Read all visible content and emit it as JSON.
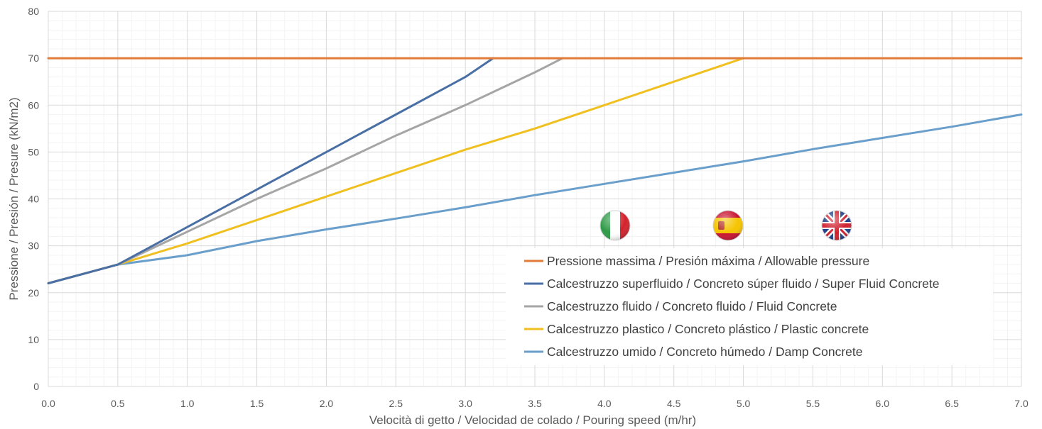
{
  "chart_data": {
    "type": "line",
    "xlabel": "Velocità di getto / Velocidad de colado / Pouring speed (m/hr)",
    "ylabel": "Pressione / Presión / Presure (kN/m2)",
    "xlim": [
      0,
      7
    ],
    "ylim": [
      0,
      80
    ],
    "x_ticks": [
      "0.0",
      "0.5",
      "1.0",
      "1.5",
      "2.0",
      "2.5",
      "3.0",
      "3.5",
      "4.0",
      "4.5",
      "5.0",
      "5.5",
      "6.0",
      "6.5",
      "7.0"
    ],
    "y_ticks": [
      "0",
      "10",
      "20",
      "30",
      "40",
      "50",
      "60",
      "70",
      "80"
    ],
    "grid": true,
    "legend_position": "bottom-right",
    "flags": [
      "italy-flag-icon",
      "spain-flag-icon",
      "uk-flag-icon"
    ],
    "series": [
      {
        "name": "Pressione massima / Presión máxima / Allowable pressure",
        "color": "#E07B39",
        "points": [
          [
            0,
            70
          ],
          [
            7,
            70
          ]
        ]
      },
      {
        "name": "Calcestruzzo superfluido / Concreto súper fluido / Super Fluid Concrete",
        "color": "#4A6FA5",
        "points": [
          [
            0,
            22
          ],
          [
            0.5,
            26
          ],
          [
            1.0,
            34
          ],
          [
            1.5,
            42
          ],
          [
            2.0,
            50
          ],
          [
            2.5,
            58
          ],
          [
            3.0,
            66
          ],
          [
            3.2,
            70
          ]
        ]
      },
      {
        "name": "Calcestruzzo fluido / Concreto fluido / Fluid Concrete",
        "color": "#A5A5A5",
        "points": [
          [
            0,
            22
          ],
          [
            0.5,
            26
          ],
          [
            1.0,
            33
          ],
          [
            1.5,
            40
          ],
          [
            2.0,
            46.5
          ],
          [
            2.5,
            53.5
          ],
          [
            3.0,
            60
          ],
          [
            3.5,
            67
          ],
          [
            3.7,
            70
          ]
        ]
      },
      {
        "name": "Calcestruzzo plastico / Concreto plástico / Plastic concrete",
        "color": "#F0C020",
        "points": [
          [
            0,
            22
          ],
          [
            0.5,
            26
          ],
          [
            1.0,
            30.5
          ],
          [
            1.5,
            35.5
          ],
          [
            2.0,
            40.5
          ],
          [
            2.5,
            45.5
          ],
          [
            3.0,
            50.5
          ],
          [
            3.5,
            55
          ],
          [
            4.0,
            60
          ],
          [
            4.5,
            65
          ],
          [
            5.0,
            70
          ]
        ]
      },
      {
        "name": "Calcestruzzo umido / Concreto húmedo / Damp Concrete",
        "color": "#6A9FCB",
        "points": [
          [
            0,
            22
          ],
          [
            0.5,
            26
          ],
          [
            1.0,
            28
          ],
          [
            1.5,
            31
          ],
          [
            2.0,
            33.5
          ],
          [
            2.5,
            35.8
          ],
          [
            3.0,
            38.2
          ],
          [
            3.5,
            40.8
          ],
          [
            4.0,
            43.2
          ],
          [
            4.5,
            45.6
          ],
          [
            5.0,
            48
          ],
          [
            5.5,
            50.6
          ],
          [
            6.0,
            53
          ],
          [
            6.5,
            55.4
          ],
          [
            7.0,
            58
          ]
        ]
      }
    ]
  }
}
